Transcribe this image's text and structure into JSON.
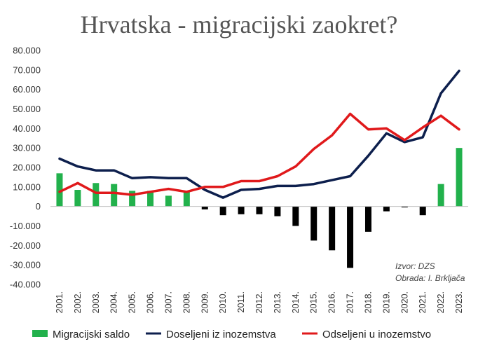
{
  "chart_data": {
    "type": "bar-line",
    "title": "Hrvatska - migracijski zaokret?",
    "categories": [
      "2001.",
      "2002.",
      "2003.",
      "2004.",
      "2005.",
      "2006.",
      "2007.",
      "2008.",
      "2009.",
      "2010.",
      "2011.",
      "2012.",
      "2013.",
      "2014.",
      "2015.",
      "2016.",
      "2017.",
      "2018.",
      "2019.",
      "2020.",
      "2021.",
      "2022.",
      "2023."
    ],
    "ylim": [
      -40000,
      80000
    ],
    "yticks": [
      80000,
      70000,
      60000,
      50000,
      40000,
      30000,
      20000,
      10000,
      0,
      -10000,
      -20000,
      -30000,
      -40000
    ],
    "ytick_labels": [
      "80.000",
      "70.000",
      "60.000",
      "50.000",
      "40.000",
      "30.000",
      "20.000",
      "10.000",
      "0",
      "-10.000",
      "-20.000",
      "-30.000",
      "-40.000"
    ],
    "grid": false,
    "legend_position": "bottom",
    "series": [
      {
        "name": "Migracijski saldo",
        "type": "bar",
        "color_positive": "#22b14c",
        "color_negative": "#000000",
        "values": [
          17000,
          8500,
          12000,
          11500,
          8000,
          8000,
          5500,
          7500,
          -1500,
          -4500,
          -4000,
          -4000,
          -5000,
          -10000,
          -17500,
          -22500,
          -31500,
          -13000,
          -2500,
          -500,
          -4500,
          11500,
          30000
        ]
      },
      {
        "name": "Doseljeni iz inozemstva",
        "type": "line",
        "color": "#0d1f4d",
        "values": [
          24500,
          20500,
          18500,
          18500,
          14500,
          15000,
          14500,
          14500,
          8500,
          4500,
          8500,
          9000,
          10500,
          10500,
          11500,
          13500,
          15500,
          26000,
          37500,
          33000,
          35500,
          58000,
          69500
        ]
      },
      {
        "name": "Odseljeni u inozemstvo",
        "type": "line",
        "color": "#e0191b",
        "values": [
          7500,
          12000,
          7000,
          7000,
          6000,
          7500,
          9000,
          7500,
          10000,
          10000,
          13000,
          13000,
          15500,
          20500,
          29500,
          36500,
          47500,
          39500,
          40000,
          34000,
          40500,
          46500,
          39500
        ]
      }
    ],
    "annotations": [
      "Izvor: DZS",
      "Obrada: I. Brkljača"
    ]
  }
}
